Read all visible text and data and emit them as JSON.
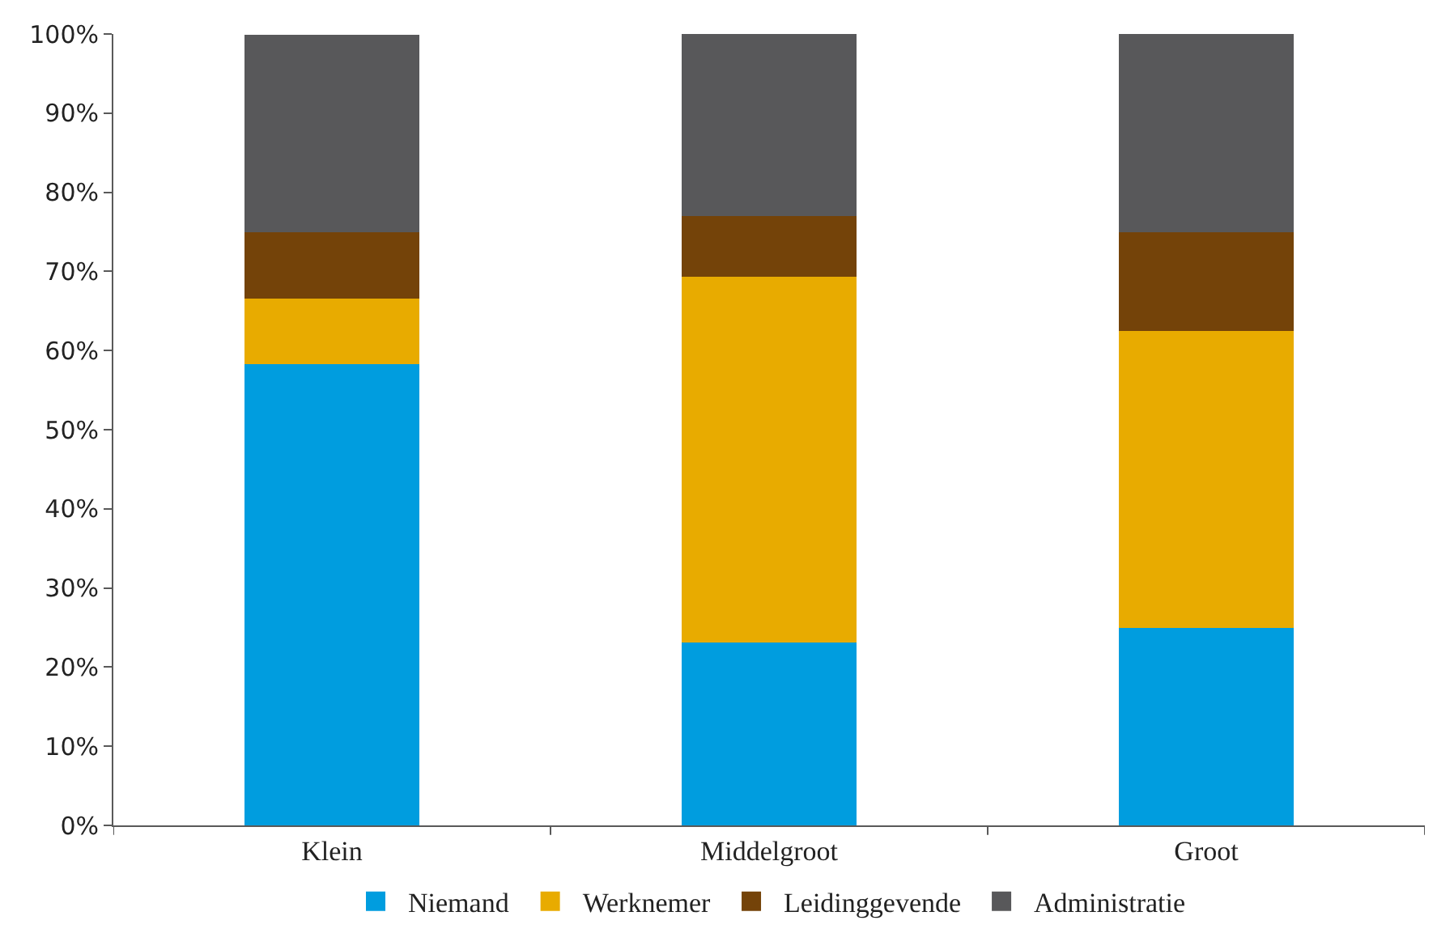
{
  "chart_data": {
    "type": "bar",
    "stacked": true,
    "categories": [
      "Klein",
      "Middelgroot",
      "Groot"
    ],
    "series": [
      {
        "name": "Niemand",
        "color": "#009ddf",
        "values": [
          58.3,
          23.1,
          25
        ]
      },
      {
        "name": "Werknemer",
        "color": "#e8ab00",
        "values": [
          8.3,
          46.2,
          37.5
        ]
      },
      {
        "name": "Leidinggevende",
        "color": "#744309",
        "values": [
          8.3,
          7.7,
          12.5
        ]
      },
      {
        "name": "Administratie",
        "color": "#58585a",
        "values": [
          25,
          23.1,
          25
        ]
      }
    ],
    "ylim": [
      0,
      100
    ],
    "yticks": [
      {
        "value": 0,
        "label": "0%"
      },
      {
        "value": 10,
        "label": "10%"
      },
      {
        "value": 20,
        "label": "20%"
      },
      {
        "value": 30,
        "label": "30%"
      },
      {
        "value": 40,
        "label": "40%"
      },
      {
        "value": 50,
        "label": "50%"
      },
      {
        "value": 60,
        "label": "60%"
      },
      {
        "value": 70,
        "label": "70%"
      },
      {
        "value": 80,
        "label": "80%"
      },
      {
        "value": 90,
        "label": "90%"
      },
      {
        "value": 100,
        "label": "100%"
      }
    ],
    "legend": "bottom"
  }
}
